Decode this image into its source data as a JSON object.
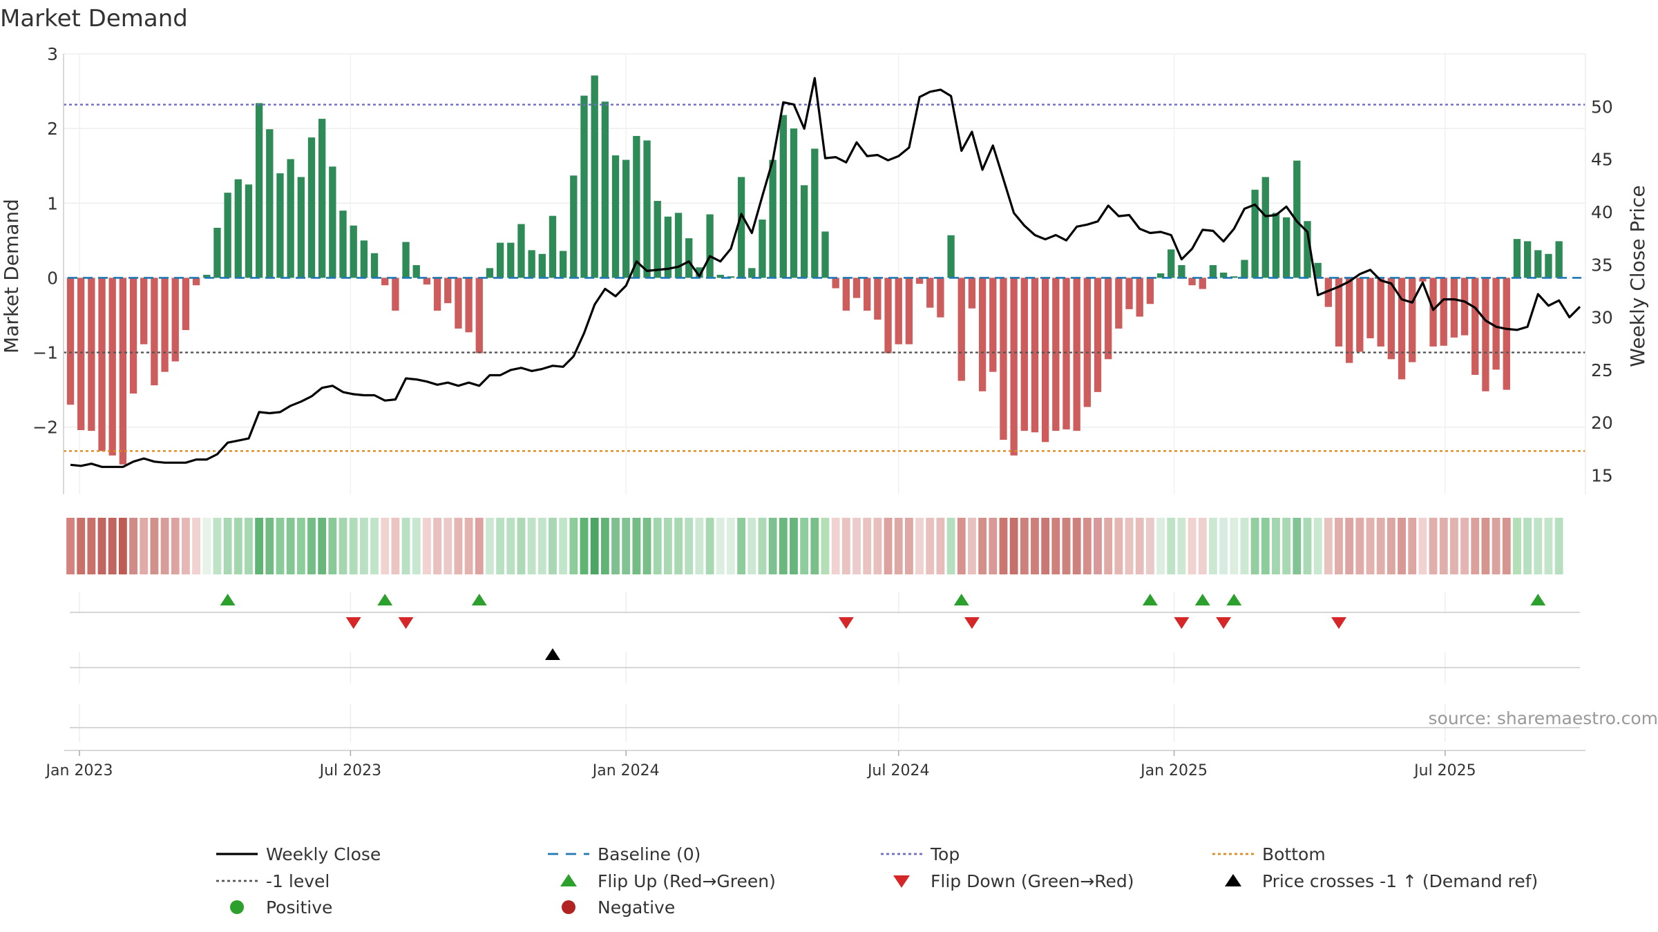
{
  "chart_data": {
    "type": "bar",
    "title": "Market Demand",
    "ylabel": "Market Demand",
    "y2label": "Weekly Close Price",
    "ylim": [
      -2.9,
      3.0
    ],
    "y2lim": [
      13.2,
      55.0
    ],
    "y_ticks": [
      -2,
      -1,
      0,
      1,
      2,
      3
    ],
    "y2_ticks": [
      15,
      20,
      25,
      30,
      35,
      40,
      45,
      50
    ],
    "x_ticks": [
      "Jan 2023",
      "Jul 2023",
      "Jan 2024",
      "Jul 2024",
      "Jan 2025",
      "Jul 2025"
    ],
    "source": "source: sharemaestro.com",
    "reference_lines": {
      "top": 2.32,
      "minus_one": -1.0,
      "bottom": -2.32,
      "baseline": 0
    },
    "x_dates": [
      "2022-12-26",
      "2023-01-02",
      "2023-01-09",
      "2023-01-16",
      "2023-01-23",
      "2023-01-30",
      "2023-02-06",
      "2023-02-13",
      "2023-02-20",
      "2023-02-27",
      "2023-03-06",
      "2023-03-13",
      "2023-03-20",
      "2023-03-27",
      "2023-04-03",
      "2023-04-10",
      "2023-04-17",
      "2023-04-24",
      "2023-05-01",
      "2023-05-08",
      "2023-05-15",
      "2023-05-22",
      "2023-05-29",
      "2023-06-05",
      "2023-06-12",
      "2023-06-19",
      "2023-06-26",
      "2023-07-03",
      "2023-07-10",
      "2023-07-17",
      "2023-07-24",
      "2023-07-31",
      "2023-08-07",
      "2023-08-14",
      "2023-08-21",
      "2023-08-28",
      "2023-09-04",
      "2023-09-11",
      "2023-09-18",
      "2023-09-25",
      "2023-10-02",
      "2023-10-09",
      "2023-10-16",
      "2023-10-23",
      "2023-10-30",
      "2023-11-06",
      "2023-11-13",
      "2023-11-20",
      "2023-11-27",
      "2023-12-04",
      "2023-12-11",
      "2023-12-18",
      "2023-12-25",
      "2024-01-01",
      "2024-01-08",
      "2024-01-15",
      "2024-01-22",
      "2024-01-29",
      "2024-02-05",
      "2024-02-12",
      "2024-02-19",
      "2024-02-26",
      "2024-03-04",
      "2024-03-11",
      "2024-03-18",
      "2024-03-25",
      "2024-04-01",
      "2024-04-08",
      "2024-04-15",
      "2024-04-22",
      "2024-04-29",
      "2024-05-06",
      "2024-05-13",
      "2024-05-20",
      "2024-05-27",
      "2024-06-03",
      "2024-06-10",
      "2024-06-17",
      "2024-06-24",
      "2024-07-01",
      "2024-07-08",
      "2024-07-15",
      "2024-07-22",
      "2024-07-29",
      "2024-08-05",
      "2024-08-12",
      "2024-08-19",
      "2024-08-26",
      "2024-09-02",
      "2024-09-09",
      "2024-09-16",
      "2024-09-23",
      "2024-09-30",
      "2024-10-07",
      "2024-10-14",
      "2024-10-21",
      "2024-10-28",
      "2024-11-04",
      "2024-11-11",
      "2024-11-18",
      "2024-11-25",
      "2024-12-02",
      "2024-12-09",
      "2024-12-16",
      "2024-12-23",
      "2024-12-30",
      "2025-01-06",
      "2025-01-13",
      "2025-01-20",
      "2025-01-27",
      "2025-02-03",
      "2025-02-10",
      "2025-02-17",
      "2025-02-24",
      "2025-03-03",
      "2025-03-10",
      "2025-03-17",
      "2025-03-24",
      "2025-03-31",
      "2025-04-07",
      "2025-04-14",
      "2025-04-21",
      "2025-04-28",
      "2025-05-05",
      "2025-05-12",
      "2025-05-19",
      "2025-05-26",
      "2025-06-02",
      "2025-06-09",
      "2025-06-16",
      "2025-06-23",
      "2025-06-30",
      "2025-07-07",
      "2025-07-14",
      "2025-07-21",
      "2025-07-28",
      "2025-08-04",
      "2025-08-11",
      "2025-08-18",
      "2025-08-25",
      "2025-09-01",
      "2025-09-08",
      "2025-09-15",
      "2025-09-22",
      "2025-09-29"
    ],
    "series": [
      {
        "name": "Market Demand",
        "values": [
          -1.7,
          -2.04,
          -2.05,
          -2.32,
          -2.38,
          -2.5,
          -1.55,
          -0.89,
          -1.44,
          -1.26,
          -1.12,
          -0.7,
          -0.1,
          0.04,
          0.67,
          1.14,
          1.32,
          1.25,
          2.34,
          1.99,
          1.4,
          1.59,
          1.35,
          1.88,
          2.13,
          1.49,
          0.9,
          0.7,
          0.5,
          0.33,
          -0.1,
          -0.44,
          0.48,
          0.17,
          -0.09,
          -0.44,
          -0.34,
          -0.68,
          -0.73,
          -1.01,
          0.13,
          0.47,
          0.47,
          0.72,
          0.37,
          0.32,
          0.83,
          0.36,
          1.37,
          2.44,
          2.71,
          2.36,
          1.64,
          1.58,
          1.9,
          1.84,
          1.03,
          0.82,
          0.87,
          0.53,
          0.14,
          0.85,
          0.04,
          0.02,
          1.35,
          0.13,
          0.78,
          1.58,
          2.18,
          2.0,
          1.24,
          1.73,
          0.62,
          -0.14,
          -0.44,
          -0.27,
          -0.44,
          -0.56,
          -1.01,
          -0.89,
          -0.89,
          -0.08,
          -0.4,
          -0.53,
          0.57,
          -1.38,
          -0.41,
          -1.52,
          -1.26,
          -2.17,
          -2.38,
          -2.05,
          -2.07,
          -2.2,
          -2.05,
          -2.03,
          -2.05,
          -1.73,
          -1.53,
          -1.09,
          -0.68,
          -0.42,
          -0.52,
          -0.35,
          0.06,
          0.38,
          0.17,
          -0.1,
          -0.15,
          0.17,
          0.07,
          0.02,
          0.24,
          1.18,
          1.35,
          0.87,
          0.81,
          1.57,
          0.76,
          0.2,
          -0.39,
          -0.92,
          -1.14,
          -0.99,
          -0.81,
          -0.92,
          -1.09,
          -1.36,
          -1.13,
          -0.05,
          -0.92,
          -0.91,
          -0.8,
          -0.77,
          -1.3,
          -1.52,
          -1.23,
          -1.5,
          0.52,
          0.49,
          0.37,
          0.32,
          0.49
        ]
      },
      {
        "name": "Weekly Close",
        "values": [
          16.0,
          15.9,
          16.1,
          15.8,
          15.8,
          15.8,
          16.3,
          16.6,
          16.3,
          16.2,
          16.2,
          16.2,
          16.5,
          16.5,
          17.0,
          18.1,
          18.3,
          18.5,
          21.0,
          20.9,
          21.0,
          21.6,
          22.0,
          22.5,
          23.3,
          23.5,
          22.9,
          22.7,
          22.6,
          22.6,
          22.1,
          22.2,
          24.2,
          24.1,
          23.9,
          23.6,
          23.8,
          23.5,
          23.8,
          23.5,
          24.5,
          24.5,
          25.0,
          25.2,
          24.9,
          25.1,
          25.4,
          25.3,
          26.3,
          28.5,
          31.2,
          32.7,
          32.0,
          33.0,
          35.3,
          34.4,
          34.5,
          34.6,
          34.8,
          35.3,
          33.9,
          35.8,
          35.3,
          36.5,
          39.8,
          38.0,
          41.5,
          44.9,
          50.4,
          50.2,
          47.9,
          52.7,
          45.1,
          45.2,
          44.7,
          46.6,
          45.3,
          45.4,
          44.9,
          45.3,
          46.1,
          50.9,
          51.4,
          51.6,
          51.0,
          45.8,
          47.6,
          44.0,
          46.3,
          43.1,
          39.9,
          38.7,
          37.8,
          37.4,
          37.8,
          37.3,
          38.6,
          38.8,
          39.1,
          40.6,
          39.6,
          39.7,
          38.4,
          38.0,
          38.1,
          37.8,
          35.5,
          36.5,
          38.3,
          38.2,
          37.2,
          38.4,
          40.3,
          40.7,
          39.6,
          39.7,
          40.5,
          39.1,
          38.1,
          32.1,
          32.5,
          32.9,
          33.4,
          34.1,
          34.5,
          33.5,
          33.2,
          31.7,
          31.4,
          33.3,
          30.7,
          31.7,
          31.7,
          31.5,
          30.9,
          29.7,
          29.1,
          28.9,
          28.8,
          29.1,
          32.2,
          31.1,
          31.6,
          30.0,
          31.0
        ]
      }
    ],
    "strip_colors": [
      "#d4827d",
      "#c9706b",
      "#c9706b",
      "#c06560",
      "#c06560",
      "#bf5b56",
      "#d08b86",
      "#e0aaa6",
      "#d38f8a",
      "#d99d99",
      "#dca4a0",
      "#e6b8b5",
      "#f0d3d1",
      "#e7f2e8",
      "#bee3c6",
      "#a8d8b3",
      "#a2d6ad",
      "#a5d7b0",
      "#5fb373",
      "#72bb84",
      "#8acb99",
      "#84c794",
      "#8dcc9b",
      "#75bd87",
      "#68b67b",
      "#89ca98",
      "#a4d6af",
      "#afdcb9",
      "#b9e0c2",
      "#c1e4c9",
      "#f0d3d1",
      "#eac5c2",
      "#b9e0c2",
      "#c8e7d0",
      "#f0d3d1",
      "#e8c0bd",
      "#eacac8",
      "#e4b6b2",
      "#e2b2ae",
      "#dca2a0",
      "#cce8d3",
      "#b8e0c1",
      "#b8e0c1",
      "#add9b7",
      "#bfe3c7",
      "#c2e5ca",
      "#a9d7b3",
      "#c2e4c9",
      "#8ecc9c",
      "#5fb373",
      "#4da565",
      "#62b375",
      "#7ec090",
      "#81c393",
      "#74bc86",
      "#77be89",
      "#a1d5ac",
      "#a9d9b4",
      "#a7d8b2",
      "#b6dfbf",
      "#cce8d3",
      "#a8d8b2",
      "#dbeedf",
      "#dbeedf",
      "#8ecc9c",
      "#cce8d3",
      "#acdab6",
      "#7dc190",
      "#6bb87e",
      "#66b57a",
      "#90cd9e",
      "#78bf8a",
      "#b4deb5",
      "#f0d3d1",
      "#e9c3c0",
      "#ecccca",
      "#e9c3c0",
      "#e7bfbc",
      "#dca2a0",
      "#dea8a5",
      "#dea8a5",
      "#f0d3d1",
      "#e8c1be",
      "#e6bdba",
      "#b5dfbf",
      "#d6928e",
      "#e8c1be",
      "#d38f8a",
      "#d89996",
      "#ca7671",
      "#c5706b",
      "#ce807c",
      "#cd7e7a",
      "#cb7874",
      "#ce807c",
      "#ce827e",
      "#ce807c",
      "#d58f8b",
      "#d9999a",
      "#dfa9a6",
      "#e4b6b2",
      "#e8c2bf",
      "#e6bdba",
      "#eacac8",
      "#dbeedf",
      "#bfe3c7",
      "#cce8d3",
      "#f0d3d1",
      "#efd0ce",
      "#cce8d3",
      "#d6ece0",
      "#dbeedf",
      "#cbe8d2",
      "#93cea0",
      "#8dcc9b",
      "#a3d6ae",
      "#a6d8b1",
      "#81c393",
      "#abd9b5",
      "#cae7d1",
      "#e8c2bf",
      "#e0ada9",
      "#dca5a2",
      "#dfaaa7",
      "#e2b2ae",
      "#e0aeab",
      "#dca7a3",
      "#d89996",
      "#dca7a3",
      "#f0d3d1",
      "#e0aeab",
      "#e0aeab",
      "#e2b2ae",
      "#e3b4b1",
      "#d9a09c",
      "#d6948f",
      "#daa29e",
      "#d6958f",
      "#b4deb5",
      "#b5dfbf",
      "#bfe3c7",
      "#c2e5ca",
      "#b5dfbf"
    ],
    "flip_up_dates": [
      "2023-04-10",
      "2023-07-24",
      "2023-09-25",
      "2024-08-12",
      "2024-12-16",
      "2025-01-20",
      "2025-02-10",
      "2025-09-01"
    ],
    "flip_down_dates": [
      "2023-07-03",
      "2023-08-07",
      "2024-05-27",
      "2024-08-19",
      "2025-01-06",
      "2025-02-03",
      "2025-04-21"
    ],
    "price_cross_dates": [
      "2023-11-13"
    ],
    "legend": {
      "placement": "bottom",
      "items": [
        {
          "label": "Weekly Close",
          "marker": "line",
          "color": "#000000"
        },
        {
          "label": "Baseline (0)",
          "marker": "dash",
          "color": "#1f77b4"
        },
        {
          "label": "Top",
          "marker": "dots",
          "color": "#6b6bc2"
        },
        {
          "label": "Bottom",
          "marker": "dots",
          "color": "#e08a1e"
        },
        {
          "label": "-1 level",
          "marker": "dots",
          "color": "#555555"
        },
        {
          "label": "Flip Up (Red→Green)",
          "marker": "tri-up",
          "color": "#2ca02c"
        },
        {
          "label": "Flip Down (Green→Red)",
          "marker": "tri-down",
          "color": "#d62728"
        },
        {
          "label": "Price crosses -1 ↑ (Demand ref)",
          "marker": "tri-up",
          "color": "#000000"
        },
        {
          "label": "Positive",
          "marker": "circle",
          "color": "#2ca02c"
        },
        {
          "label": "Negative",
          "marker": "circle",
          "color": "#b22222"
        }
      ]
    },
    "colors": {
      "positive_bar": "#2e8b57",
      "negative_bar": "#cd5c5c",
      "flip_up": "#2ca02c",
      "flip_down": "#d62728",
      "price_cross": "#000000",
      "close_line": "#000000",
      "top_line": "#6b6bc2",
      "bottom_line": "#e08a1e",
      "minus_one_line": "#555555",
      "baseline": "#1f77b4"
    }
  }
}
